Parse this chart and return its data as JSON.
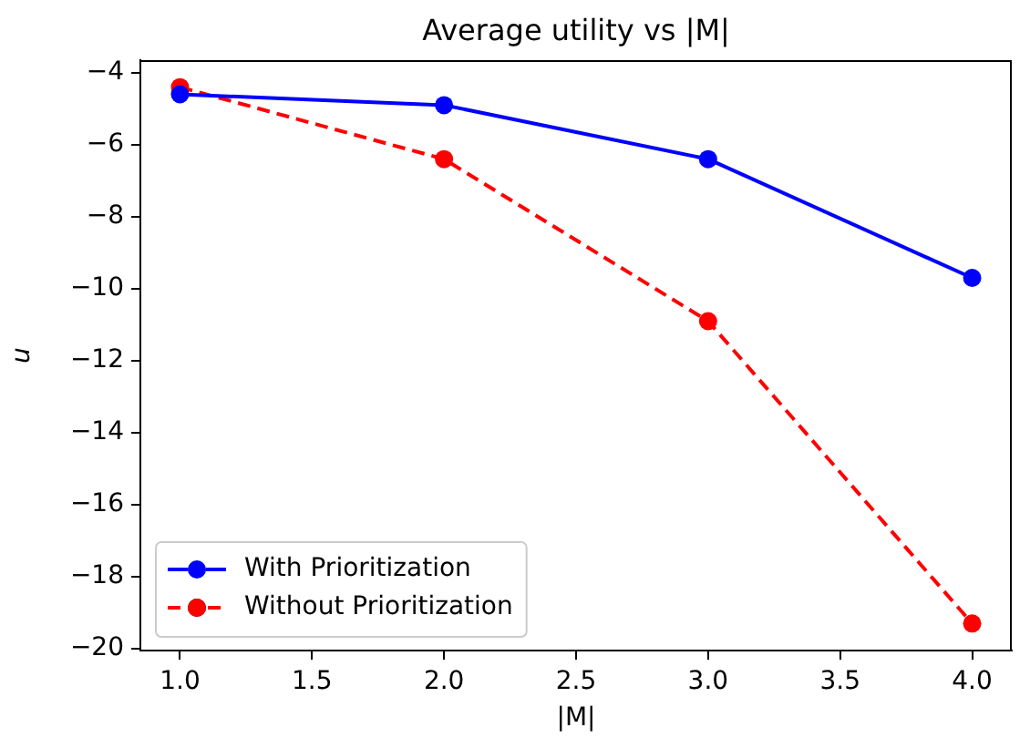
{
  "chart_data": {
    "type": "line",
    "title": "Average utility vs |M|",
    "xlabel": "|M|",
    "ylabel": "u",
    "x": [
      1,
      2,
      3,
      4
    ],
    "series": [
      {
        "name": "With Prioritization",
        "color": "#0000ff",
        "values": [
          -4.6,
          -4.9,
          -6.4,
          -9.7
        ],
        "marker": "circle",
        "line_style": "solid"
      },
      {
        "name": "Without Prioritization",
        "color": "#ff0000",
        "values": [
          -4.4,
          -6.4,
          -10.9,
          -19.3
        ],
        "marker": "circle",
        "line_style": "dashed"
      }
    ],
    "xlim": [
      0.85,
      4.15
    ],
    "ylim": [
      -20.05,
      -3.65
    ],
    "xticks": [
      {
        "value": 1,
        "label": "1.0"
      },
      {
        "value": 1.5,
        "label": "1.5"
      },
      {
        "value": 2,
        "label": "2.0"
      },
      {
        "value": 2.5,
        "label": "2.5"
      },
      {
        "value": 3,
        "label": "3.0"
      },
      {
        "value": 3.5,
        "label": "3.5"
      },
      {
        "value": 4,
        "label": "4.0"
      }
    ],
    "yticks": [
      {
        "value": -4,
        "label": "−4"
      },
      {
        "value": -6,
        "label": "−6"
      },
      {
        "value": -8,
        "label": "−8"
      },
      {
        "value": -10,
        "label": "−10"
      },
      {
        "value": -12,
        "label": "−12"
      },
      {
        "value": -14,
        "label": "−14"
      },
      {
        "value": -16,
        "label": "−16"
      },
      {
        "value": -18,
        "label": "−18"
      },
      {
        "value": -20,
        "label": "−20"
      }
    ],
    "grid": false,
    "legend": "bottom left"
  }
}
